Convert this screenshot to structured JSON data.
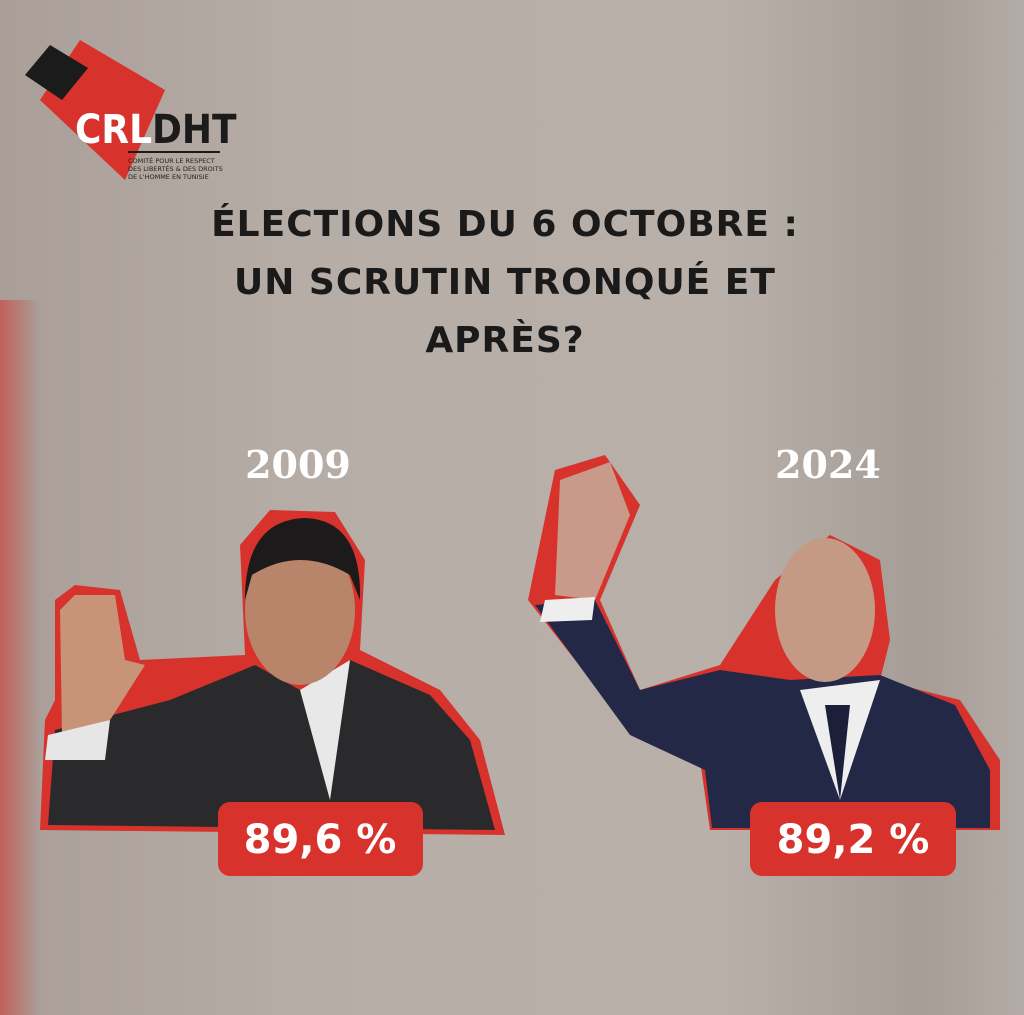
{
  "logo": {
    "name_left": "CRL",
    "name_right": "DHT",
    "tagline": [
      "COMITÉ POUR LE RESPECT",
      "DES LIBERTÉS & DES DROITS",
      "DE L'HOMME EN TUNISIE"
    ]
  },
  "title": [
    "ÉLECTIONS DU 6 OCTOBRE :",
    "UN SCRUTIN TRONQUÉ ET",
    "APRÈS?"
  ],
  "panels": [
    {
      "year": "2009",
      "result": "89,6 %"
    },
    {
      "year": "2024",
      "result": "89,2 %"
    }
  ]
}
